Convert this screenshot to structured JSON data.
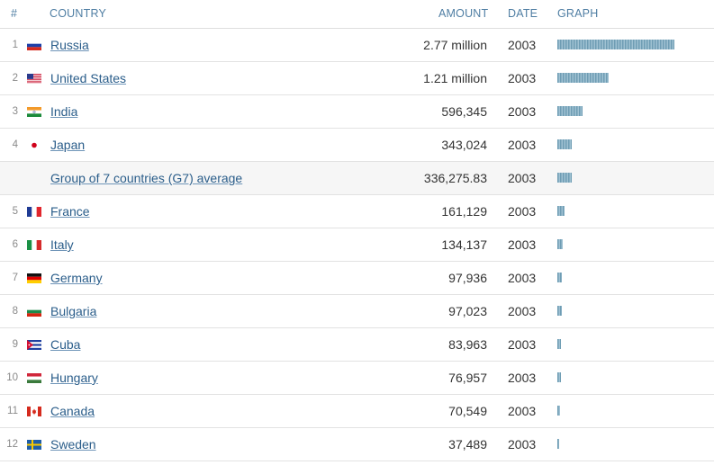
{
  "header": {
    "rank": "#",
    "country": "COUNTRY",
    "amount": "AMOUNT",
    "date": "DATE",
    "graph": "GRAPH"
  },
  "rows": [
    {
      "rank": "1",
      "flag": "russia-flag-icon",
      "country": "Russia",
      "amount": "2.77 million",
      "date": "2003",
      "value": 2770000
    },
    {
      "rank": "2",
      "flag": "usa-flag-icon",
      "country": "United States",
      "amount": "1.21 million",
      "date": "2003",
      "value": 1210000
    },
    {
      "rank": "3",
      "flag": "india-flag-icon",
      "country": "India",
      "amount": "596,345",
      "date": "2003",
      "value": 596345
    },
    {
      "rank": "4",
      "flag": "japan-flag-icon",
      "country": "Japan",
      "amount": "343,024",
      "date": "2003",
      "value": 343024
    },
    {
      "rank": "",
      "flag": "",
      "country": "Group of 7 countries (G7) average",
      "amount": "336,275.83",
      "date": "2003",
      "value": 336275.83,
      "shaded": true
    },
    {
      "rank": "5",
      "flag": "france-flag-icon",
      "country": "France",
      "amount": "161,129",
      "date": "2003",
      "value": 161129
    },
    {
      "rank": "6",
      "flag": "italy-flag-icon",
      "country": "Italy",
      "amount": "134,137",
      "date": "2003",
      "value": 134137
    },
    {
      "rank": "7",
      "flag": "germany-flag-icon",
      "country": "Germany",
      "amount": "97,936",
      "date": "2003",
      "value": 97936
    },
    {
      "rank": "8",
      "flag": "bulgaria-flag-icon",
      "country": "Bulgaria",
      "amount": "97,023",
      "date": "2003",
      "value": 97023
    },
    {
      "rank": "9",
      "flag": "cuba-flag-icon",
      "country": "Cuba",
      "amount": "83,963",
      "date": "2003",
      "value": 83963
    },
    {
      "rank": "10",
      "flag": "hungary-flag-icon",
      "country": "Hungary",
      "amount": "76,957",
      "date": "2003",
      "value": 76957
    },
    {
      "rank": "11",
      "flag": "canada-flag-icon",
      "country": "Canada",
      "amount": "70,549",
      "date": "2003",
      "value": 70549
    },
    {
      "rank": "12",
      "flag": "sweden-flag-icon",
      "country": "Sweden",
      "amount": "37,489",
      "date": "2003",
      "value": 37489
    }
  ],
  "colors": {
    "link": "#2a5d8a",
    "header": "#4f7ea3",
    "bar": "#6f9db4",
    "shaded_row": "#f6f6f6"
  }
}
